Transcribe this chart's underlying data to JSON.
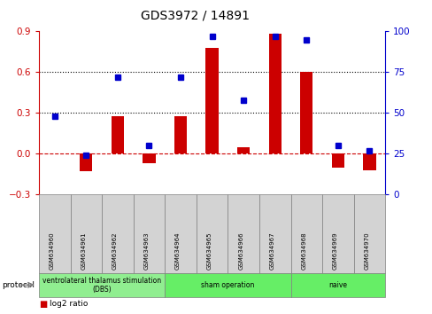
{
  "title": "GDS3972 / 14891",
  "samples": [
    "GSM634960",
    "GSM634961",
    "GSM634962",
    "GSM634963",
    "GSM634964",
    "GSM634965",
    "GSM634966",
    "GSM634967",
    "GSM634968",
    "GSM634969",
    "GSM634970"
  ],
  "log2_ratio": [
    0.0,
    -0.13,
    0.28,
    -0.07,
    0.28,
    0.78,
    0.05,
    0.88,
    0.6,
    -0.1,
    -0.12
  ],
  "percentile_rank": [
    48,
    24,
    72,
    30,
    72,
    97,
    58,
    97,
    95,
    30,
    27
  ],
  "groups": [
    {
      "label": "ventrolateral thalamus stimulation\n(DBS)",
      "start": 0,
      "end": 3,
      "color": "#90EE90"
    },
    {
      "label": "sham operation",
      "start": 4,
      "end": 7,
      "color": "#66EE66"
    },
    {
      "label": "naive",
      "start": 8,
      "end": 10,
      "color": "#66EE66"
    }
  ],
  "bar_color": "#CC0000",
  "dot_color": "#0000CC",
  "ylim_left": [
    -0.3,
    0.9
  ],
  "ylim_right": [
    0,
    100
  ],
  "yticks_left": [
    -0.3,
    0.0,
    0.3,
    0.6,
    0.9
  ],
  "yticks_right": [
    0,
    25,
    50,
    75,
    100
  ],
  "hline_zero_color": "#CC0000",
  "hline_dotted_color": "black",
  "cell_bg_color": "#D3D3D3",
  "background_color": "#ffffff",
  "bar_width": 0.4
}
